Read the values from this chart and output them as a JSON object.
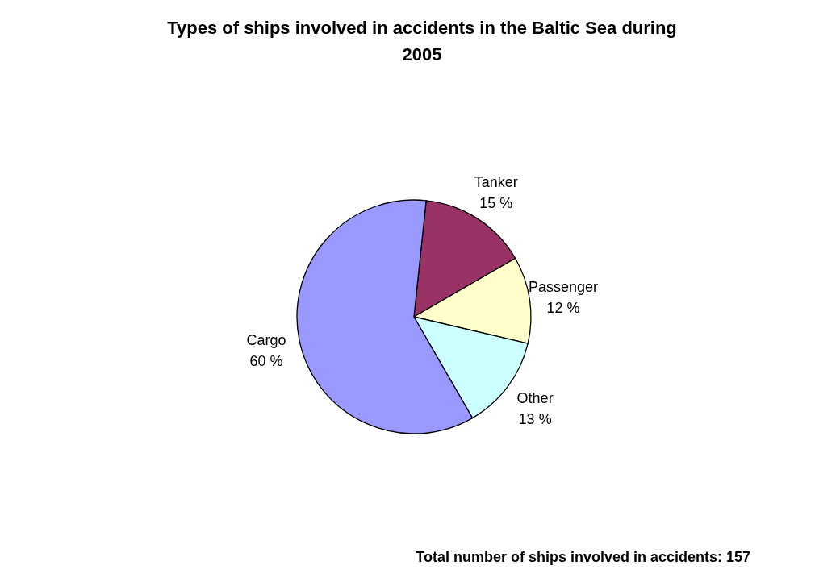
{
  "chart_data": {
    "type": "pie",
    "title": "Types of ships involved in accidents in the Baltic Sea during 2005",
    "categories": [
      "Tanker",
      "Passenger",
      "Other",
      "Cargo"
    ],
    "values": [
      15,
      12,
      13,
      60
    ],
    "value_labels": [
      "15 %",
      "12 %",
      "13 %",
      "60 %"
    ],
    "colors": [
      "#993366",
      "#ffffcc",
      "#ccffff",
      "#9999ff"
    ],
    "annotations": [
      "Total number of ships involved in accidents: 157"
    ]
  }
}
